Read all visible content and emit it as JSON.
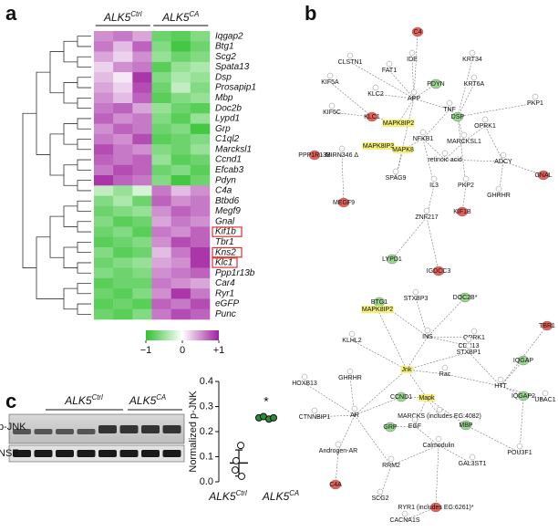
{
  "panels": {
    "a": "a",
    "b": "b",
    "c": "c"
  },
  "heatmap": {
    "type": "heatmap",
    "groups": [
      {
        "base": "ALK5",
        "sup": "Ctrl"
      },
      {
        "base": "ALK5",
        "sup": "CA"
      }
    ],
    "genes": [
      "Iqgap2",
      "Btg1",
      "Scg2",
      "Spata13",
      "Dsp",
      "Prosapip1",
      "Mbp",
      "Doc2b",
      "Lypd1",
      "Grp",
      "C1ql2",
      "Marcksl1",
      "Ccnd1",
      "Efcab3",
      "Pdyn",
      "C4a",
      "Btbd6",
      "Megf9",
      "Gnal",
      "Kif1b",
      "Tbr1",
      "Kns2",
      "Klc1",
      "Ppp1r13b",
      "Car4",
      "Ryr1",
      "eGFP",
      "Punc"
    ],
    "boxed_rows": [
      19,
      21,
      22
    ],
    "values": [
      [
        0.5,
        0.6,
        0.4,
        -0.7,
        -0.8,
        -0.6
      ],
      [
        0.6,
        0.3,
        0.7,
        -0.6,
        -0.9,
        -0.7
      ],
      [
        0.4,
        0.2,
        0.5,
        -0.5,
        -0.7,
        -0.6
      ],
      [
        0.2,
        0.5,
        0.6,
        -0.8,
        -0.5,
        -0.4
      ],
      [
        0.3,
        0.1,
        0.9,
        -0.6,
        -0.4,
        -0.5
      ],
      [
        0.4,
        0.2,
        0.8,
        -0.7,
        -0.3,
        -0.6
      ],
      [
        0.5,
        0.3,
        0.7,
        -0.8,
        -0.6,
        -0.5
      ],
      [
        0.6,
        0.7,
        0.4,
        -0.5,
        -0.7,
        -0.8
      ],
      [
        0.7,
        0.5,
        0.6,
        -0.6,
        -0.8,
        -0.5
      ],
      [
        0.5,
        0.7,
        0.6,
        -0.7,
        -0.6,
        -0.9
      ],
      [
        0.6,
        0.5,
        0.8,
        -0.8,
        -0.7,
        -0.6
      ],
      [
        0.8,
        0.6,
        0.5,
        -0.6,
        -0.7,
        -0.5
      ],
      [
        0.7,
        0.6,
        0.7,
        -0.5,
        -0.8,
        -0.7
      ],
      [
        0.6,
        0.8,
        0.7,
        -0.7,
        -0.6,
        -0.8
      ],
      [
        0.9,
        0.7,
        0.6,
        -0.6,
        -0.9,
        -0.7
      ],
      [
        -0.3,
        -0.5,
        -0.2,
        0.6,
        0.3,
        0.5
      ],
      [
        -0.6,
        -0.4,
        -0.7,
        0.7,
        0.5,
        0.6
      ],
      [
        -0.7,
        -0.6,
        -0.5,
        0.5,
        0.7,
        0.6
      ],
      [
        -0.6,
        -0.8,
        -0.7,
        0.4,
        0.6,
        0.5
      ],
      [
        -0.7,
        -0.6,
        -0.8,
        0.6,
        0.5,
        0.7
      ],
      [
        -0.8,
        -0.7,
        -0.6,
        0.5,
        0.8,
        0.7
      ],
      [
        -0.6,
        -0.8,
        -0.7,
        0.3,
        0.6,
        0.9
      ],
      [
        -0.7,
        -0.6,
        -0.5,
        0.4,
        0.5,
        0.9
      ],
      [
        -0.6,
        -0.7,
        -0.6,
        0.5,
        0.6,
        0.7
      ],
      [
        -0.8,
        -0.7,
        -0.7,
        0.6,
        0.5,
        0.4
      ],
      [
        -0.7,
        -0.8,
        -0.6,
        0.5,
        0.9,
        0.6
      ],
      [
        -0.8,
        -0.7,
        -0.8,
        0.7,
        0.6,
        0.8
      ],
      [
        -0.7,
        -0.8,
        -0.6,
        0.6,
        0.8,
        0.7
      ]
    ],
    "clim": [
      -1,
      1
    ],
    "colors": {
      "low": "#2fc22f",
      "high": "#a020a0"
    },
    "cticks": [
      {
        "value": -1,
        "label": "−1"
      },
      0,
      {
        "value": 1,
        "label": "+1"
      }
    ]
  },
  "network_top": [
    {
      "label": "C4",
      "color": "red"
    },
    {
      "label": "IDE"
    },
    {
      "label": "KRT34"
    },
    {
      "label": "CLSTN1"
    },
    {
      "label": "FAT1"
    },
    {
      "label": "PDYN",
      "color": "green"
    },
    {
      "label": "KIF5A"
    },
    {
      "label": "KRT6A"
    },
    {
      "label": "KLC2"
    },
    {
      "label": "APP"
    },
    {
      "label": "KIF5C"
    },
    {
      "label": "KLC1",
      "color": "red"
    },
    {
      "label": "MAPK8IP2",
      "color": "yellow"
    },
    {
      "label": "TNF"
    },
    {
      "label": "DSP",
      "color": "green"
    },
    {
      "label": "PKP1"
    },
    {
      "label": "OPRK1"
    },
    {
      "label": "MAPK8IP3",
      "color": "yellow"
    },
    {
      "label": "MAPK8",
      "color": "yellow"
    },
    {
      "label": "NFKB1"
    },
    {
      "label": "MARCKSL1"
    },
    {
      "label": "PPP1R13B",
      "color": "red"
    },
    {
      "label": "MIRN346 Δ"
    },
    {
      "label": "retinoic acid"
    },
    {
      "label": "ADCY"
    },
    {
      "label": "GNAL",
      "color": "red"
    },
    {
      "label": "SPAG9"
    },
    {
      "label": "IL3"
    },
    {
      "label": "PKP2"
    },
    {
      "label": "GHRHR"
    },
    {
      "label": "MEGF9",
      "color": "red"
    },
    {
      "label": "KIF1B",
      "color": "red"
    },
    {
      "label": "ZNF217"
    },
    {
      "label": "LYPD1",
      "color": "green"
    },
    {
      "label": "IGDCC3",
      "color": "red"
    }
  ],
  "network_bottom": [
    {
      "label": "STXBP3"
    },
    {
      "label": "DOC2B*",
      "color": "green"
    },
    {
      "label": "BTG1",
      "color": "green"
    },
    {
      "label": "MAPK8IP2",
      "color": "yellow"
    },
    {
      "label": "OPRK1"
    },
    {
      "label": "TBR1",
      "color": "red"
    },
    {
      "label": "INS"
    },
    {
      "label": "KLHL2"
    },
    {
      "label": "CDH13"
    },
    {
      "label": "STXBP1"
    },
    {
      "label": "IQGAP",
      "color": "green"
    },
    {
      "label": "GHRHR"
    },
    {
      "label": "Jnk",
      "color": "yellow"
    },
    {
      "label": "Rac"
    },
    {
      "label": "HTT"
    },
    {
      "label": "HOXB13"
    },
    {
      "label": "CCND1",
      "color": "green"
    },
    {
      "label": "Mapk",
      "color": "yellow"
    },
    {
      "label": "UBAC1"
    },
    {
      "label": "IQGAP2",
      "color": "green"
    },
    {
      "label": "CTNNBIP1"
    },
    {
      "label": "AR"
    },
    {
      "label": "MARCKS (includes EG:4082)"
    },
    {
      "label": "GRP",
      "color": "green"
    },
    {
      "label": "EGF"
    },
    {
      "label": "MBP",
      "color": "green"
    },
    {
      "label": "Androgen-AR"
    },
    {
      "label": "Calmodulin"
    },
    {
      "label": "POU3F1"
    },
    {
      "label": "GAL3ST1"
    },
    {
      "label": "RRM2"
    },
    {
      "label": "C4A",
      "color": "red"
    },
    {
      "label": "SCG2"
    },
    {
      "label": "RYR1 (includes EG:6261)*",
      "color": "red"
    },
    {
      "label": "CACNA1S"
    }
  ],
  "blot": {
    "groups": [
      {
        "base": "ALK5",
        "sup": "Ctrl"
      },
      {
        "base": "ALK5",
        "sup": "CA"
      }
    ],
    "rows": [
      "p-JNK",
      "NSE"
    ]
  },
  "chart_data": {
    "type": "scatter",
    "ylabel": "Normalized p-JNK",
    "categories": [
      {
        "base": "ALK5",
        "sup": "Ctrl"
      },
      {
        "base": "ALK5",
        "sup": "CA"
      }
    ],
    "series": [
      {
        "values": [
          0.145,
          0.084,
          0.047,
          0.022
        ],
        "mean": 0.075,
        "sd": 0.052,
        "color": "#ffffff"
      },
      {
        "values": [
          0.255,
          0.26,
          0.25,
          0.255
        ],
        "mean": 0.255,
        "sd": 0.004,
        "color": "#2e8b3a"
      }
    ],
    "annotation": "*",
    "ylim": [
      0,
      0.4
    ],
    "yticks": [
      {
        "value": 0,
        "label": "0.0"
      },
      {
        "value": 0.1,
        "label": "0.1"
      },
      {
        "value": 0.2,
        "label": "0.2"
      },
      {
        "value": 0.3,
        "label": "0.3"
      },
      {
        "value": 0.4,
        "label": "0.4"
      }
    ]
  }
}
